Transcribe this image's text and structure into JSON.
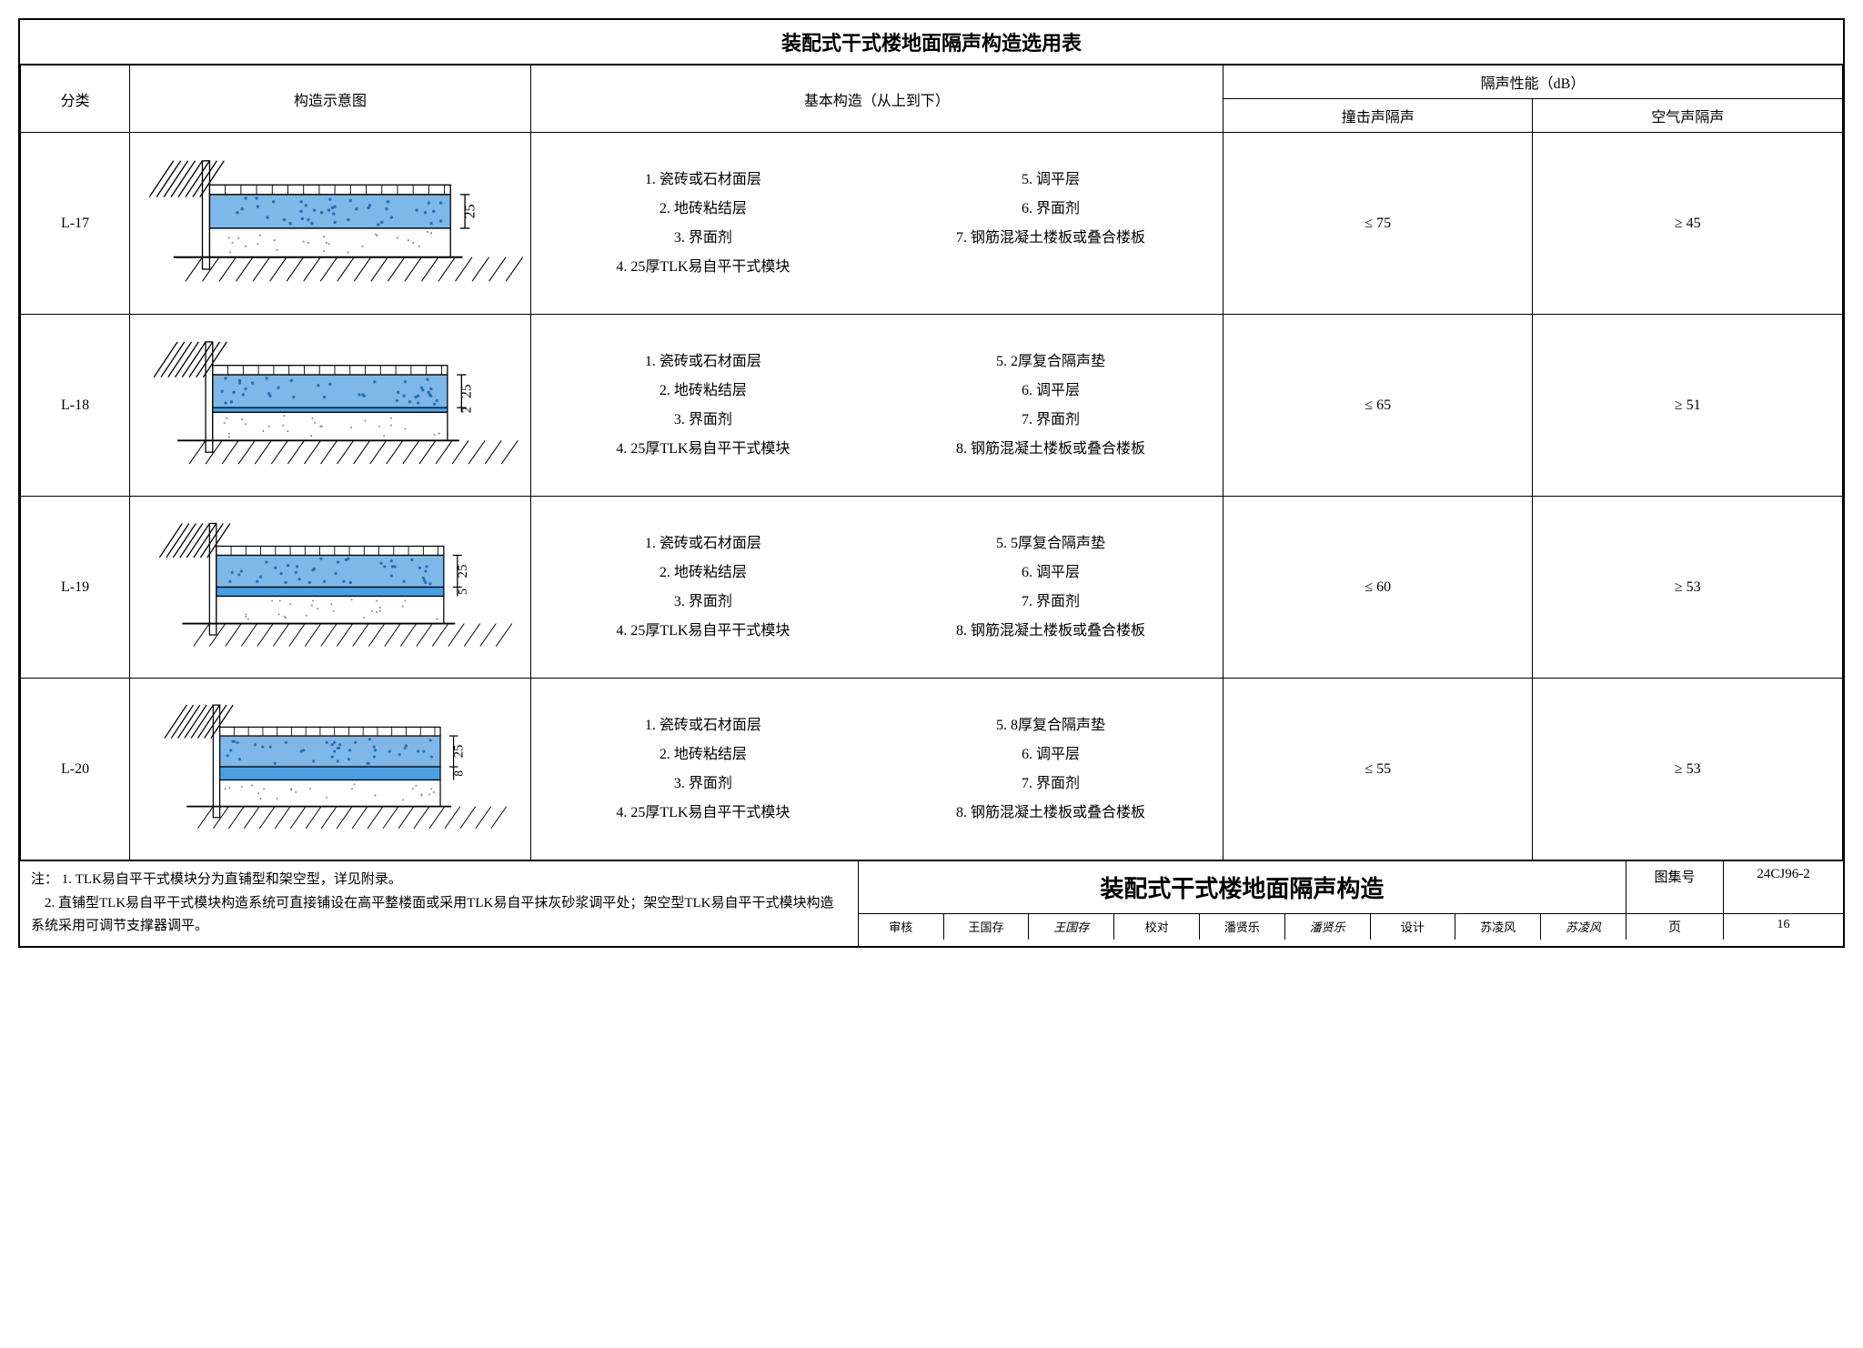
{
  "title": "装配式干式楼地面隔声构造选用表",
  "headers": {
    "category": "分类",
    "diagram": "构造示意图",
    "construction": "基本构造（从上到下）",
    "perf_group": "隔声性能（dB）",
    "perf_impact": "撞击声隔声",
    "perf_air": "空气声隔声"
  },
  "rows": [
    {
      "code": "L-17",
      "left": [
        "1. 瓷砖或石材面层",
        "2. 地砖粘结层",
        "3. 界面剂",
        "4. 25厚TLK易自平干式模块"
      ],
      "right": [
        "5. 调平层",
        "6. 界面剂",
        "7. 钢筋混凝土楼板或叠合楼板"
      ],
      "impact": "≤ 75",
      "air": "≥ 45",
      "dims": [
        "25"
      ],
      "pad_thick": 0
    },
    {
      "code": "L-18",
      "left": [
        "1. 瓷砖或石材面层",
        "2. 地砖粘结层",
        "3. 界面剂",
        "4. 25厚TLK易自平干式模块"
      ],
      "right": [
        "5. 2厚复合隔声垫",
        "6. 调平层",
        "7. 界面剂",
        "8. 钢筋混凝土楼板或叠合楼板"
      ],
      "impact": "≤ 65",
      "air": "≥ 51",
      "dims": [
        "25",
        "2"
      ],
      "pad_thick": 4
    },
    {
      "code": "L-19",
      "left": [
        "1. 瓷砖或石材面层",
        "2. 地砖粘结层",
        "3. 界面剂",
        "4. 25厚TLK易自平干式模块"
      ],
      "right": [
        "5. 5厚复合隔声垫",
        "6. 调平层",
        "7. 界面剂",
        "8. 钢筋混凝土楼板或叠合楼板"
      ],
      "impact": "≤ 60",
      "air": "≥ 53",
      "dims": [
        "25",
        "5"
      ],
      "pad_thick": 8
    },
    {
      "code": "L-20",
      "left": [
        "1. 瓷砖或石材面层",
        "2. 地砖粘结层",
        "3. 界面剂",
        "4. 25厚TLK易自平干式模块"
      ],
      "right": [
        "5. 8厚复合隔声垫",
        "6. 调平层",
        "7. 界面剂",
        "8. 钢筋混凝土楼板或叠合楼板"
      ],
      "impact": "≤ 55",
      "air": "≥ 53",
      "dims": [
        "25",
        "8"
      ],
      "pad_thick": 12
    }
  ],
  "notes": {
    "prefix": "注：",
    "lines": [
      "1. TLK易自平干式模块分为直铺型和架空型，详见附录。",
      "2. 直铺型TLK易自平干式模块构造系统可直接铺设在高平整楼面或采用TLK易自平抹灰砂浆调平处；架空型TLK易自平干式模块构造系统采用可调节支撑器调平。"
    ]
  },
  "footer": {
    "big_title": "装配式干式楼地面隔声构造",
    "atlas_label": "图集号",
    "atlas_val": "24CJ96-2",
    "page_label": "页",
    "page_val": "16",
    "sign": {
      "review_l": "审核",
      "review_v": "王国存",
      "review_s": "王国存",
      "check_l": "校对",
      "check_v": "潘贤乐",
      "check_s": "潘贤乐",
      "design_l": "设计",
      "design_v": "苏凌风",
      "design_s": "苏凌风"
    }
  },
  "colors": {
    "module_fill": "#7db8e8",
    "module_dots": "#2a6fb0",
    "pad_fill": "#4a9fe0",
    "slab_fill": "#ffffff",
    "line": "#000000"
  }
}
